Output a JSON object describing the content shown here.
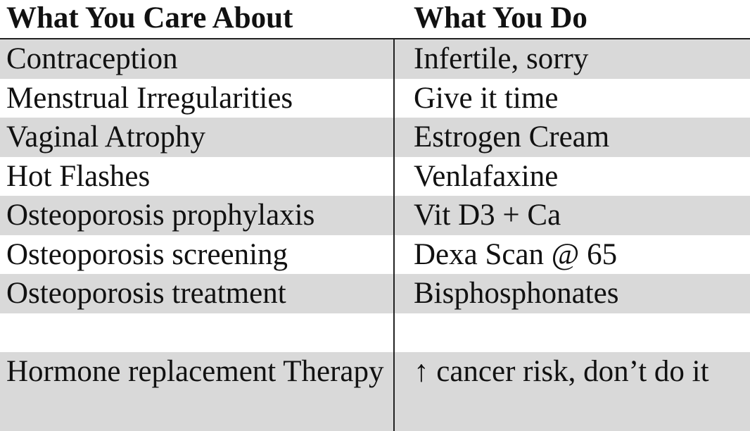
{
  "table": {
    "headers": [
      "What You Care About",
      "What You Do"
    ],
    "rows": [
      [
        "Contraception",
        "Infertile, sorry"
      ],
      [
        "Menstrual Irregularities",
        "Give it time"
      ],
      [
        "Vaginal Atrophy",
        "Estrogen Cream"
      ],
      [
        "Hot Flashes",
        "Venlafaxine"
      ],
      [
        "Osteoporosis prophylaxis",
        "Vit D3 + Ca"
      ],
      [
        "Osteoporosis screening",
        "Dexa Scan @ 65"
      ],
      [
        "Osteoporosis treatment",
        "Bisphosphonates"
      ],
      [
        "",
        ""
      ],
      [
        "Hormone replacement Therapy",
        "↑ cancer risk, don’t do it"
      ]
    ]
  }
}
